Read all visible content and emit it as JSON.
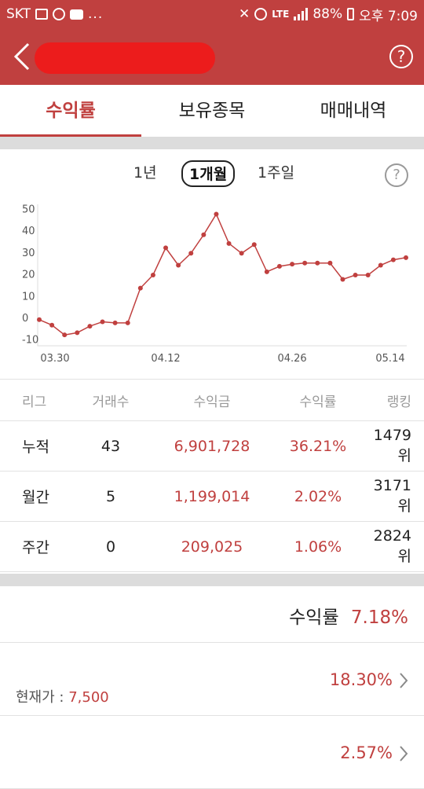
{
  "status": {
    "carrier": "SKT",
    "dots": "...",
    "lte": "LTE",
    "battery": "88%",
    "time": "오후 7:09"
  },
  "header": {
    "help_symbol": "?"
  },
  "tabs": [
    {
      "label": "수익률",
      "active": true
    },
    {
      "label": "보유종목",
      "active": false
    },
    {
      "label": "매매내역",
      "active": false
    }
  ],
  "periods": [
    {
      "label": "1년",
      "selected": false
    },
    {
      "label": "1개월",
      "selected": true
    },
    {
      "label": "1주일",
      "selected": false
    }
  ],
  "period_help_symbol": "?",
  "chart_data": {
    "type": "line",
    "x_ticks": [
      "03.30",
      "04.12",
      "04.26",
      "05.14"
    ],
    "y_ticks": [
      50,
      40,
      30,
      20,
      10,
      0,
      -10
    ],
    "ylim": [
      -13,
      52
    ],
    "values": [
      -1,
      -3.5,
      -8,
      -7,
      -4,
      -2,
      -2.5,
      -2.5,
      13.5,
      19.5,
      32,
      24,
      29.5,
      38,
      47.5,
      34,
      29.5,
      33.5,
      21,
      23.5,
      24.5,
      25,
      25,
      25,
      17.5,
      19.5,
      19.5,
      24,
      26.5,
      27.5
    ],
    "line_color": "#c0403f",
    "grid": false
  },
  "table": {
    "headers": [
      "리그",
      "거래수",
      "수익금",
      "수익률",
      "랭킹"
    ],
    "rows": [
      {
        "league": "누적",
        "trades": "43",
        "profit": "6,901,728",
        "rate": "36.21%",
        "rank": "1479위"
      },
      {
        "league": "월간",
        "trades": "5",
        "profit": "1,199,014",
        "rate": "2.02%",
        "rank": "3171위"
      },
      {
        "league": "주간",
        "trades": "0",
        "profit": "209,025",
        "rate": "1.06%",
        "rank": "2824위"
      }
    ]
  },
  "summary": {
    "label": "수익률",
    "value": "7.18%"
  },
  "items": [
    {
      "price_label": "현재가 : ",
      "price": "7,500",
      "rate": "18.30%"
    },
    {
      "price_label": "",
      "price": "",
      "rate": "2.57%"
    }
  ],
  "colors": {
    "brand": "#c0403f",
    "redaction": "#ec1c1c"
  }
}
